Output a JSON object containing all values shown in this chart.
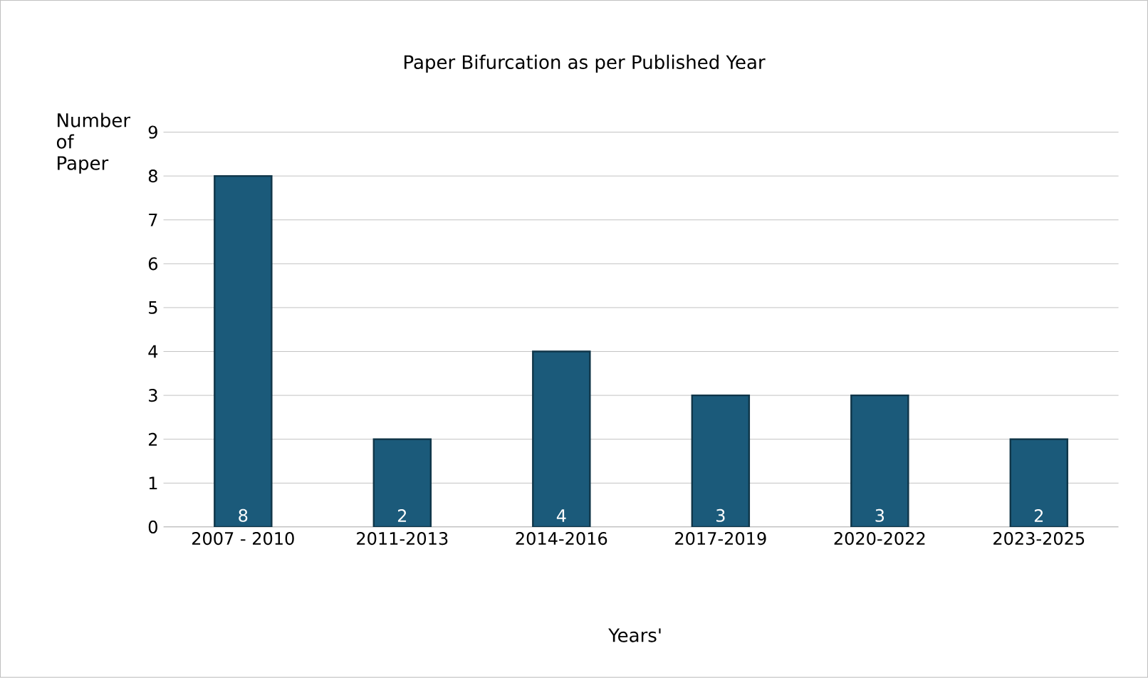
{
  "chart_data": {
    "type": "bar",
    "title": "Paper Bifurcation as per Published Year",
    "xlabel": "Years'",
    "ylabel": "Number of Paper",
    "categories": [
      "2007 - 2010",
      "2011-2013",
      "2014-2016",
      "2017-2019",
      "2020-2022",
      "2023-2025"
    ],
    "values": [
      8,
      2,
      4,
      3,
      3,
      2
    ],
    "color": "#1b5a7a",
    "ylim": [
      0,
      9
    ],
    "yticks": [
      0,
      1,
      2,
      3,
      4,
      5,
      6,
      7,
      8,
      9
    ],
    "grid": "y",
    "data_labels": true
  }
}
